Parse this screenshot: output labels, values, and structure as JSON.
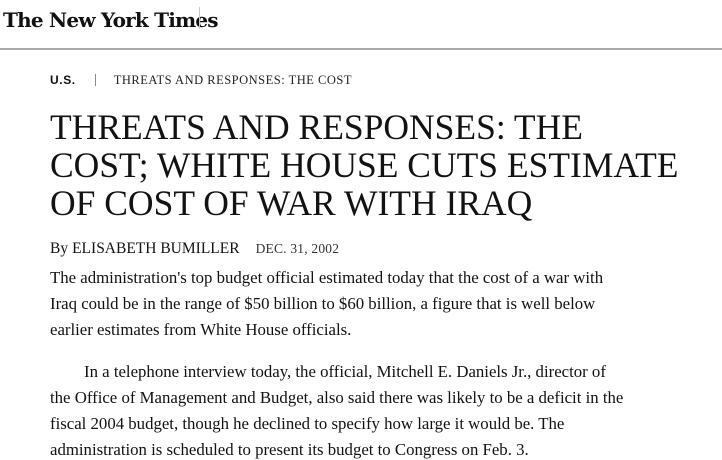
{
  "masthead": {
    "logo_text": "The New York Times"
  },
  "kicker": {
    "section": "U.S.",
    "series": "THREATS AND RESPONSES: THE COST"
  },
  "headline": {
    "lines": [
      "THREATS AND RESPONSES: THE",
      "COST; WHITE HOUSE CUTS ESTIMATE",
      "OF COST OF WAR WITH IRAQ"
    ]
  },
  "byline": {
    "prefix": "By",
    "author": "ELISABETH BUMILLER",
    "date": "DEC. 31, 2002"
  },
  "article": {
    "paragraphs": [
      {
        "lines": [
          "The administration's top budget official estimated today that the cost of a war with",
          "Iraq could be in the range of $50 billion to $60 billion, a figure that is well below",
          "earlier estimates from White House officials."
        ]
      },
      {
        "lines": [
          "In a telephone interview today, the official, Mitchell E. Daniels Jr., director of",
          "the Office of Management and Budget, also said there was likely to be a deficit in the",
          "fiscal 2004 budget, though he declined to specify how large it would be. The",
          "administration is scheduled to present its budget to Congress on Feb. 3."
        ]
      }
    ]
  }
}
